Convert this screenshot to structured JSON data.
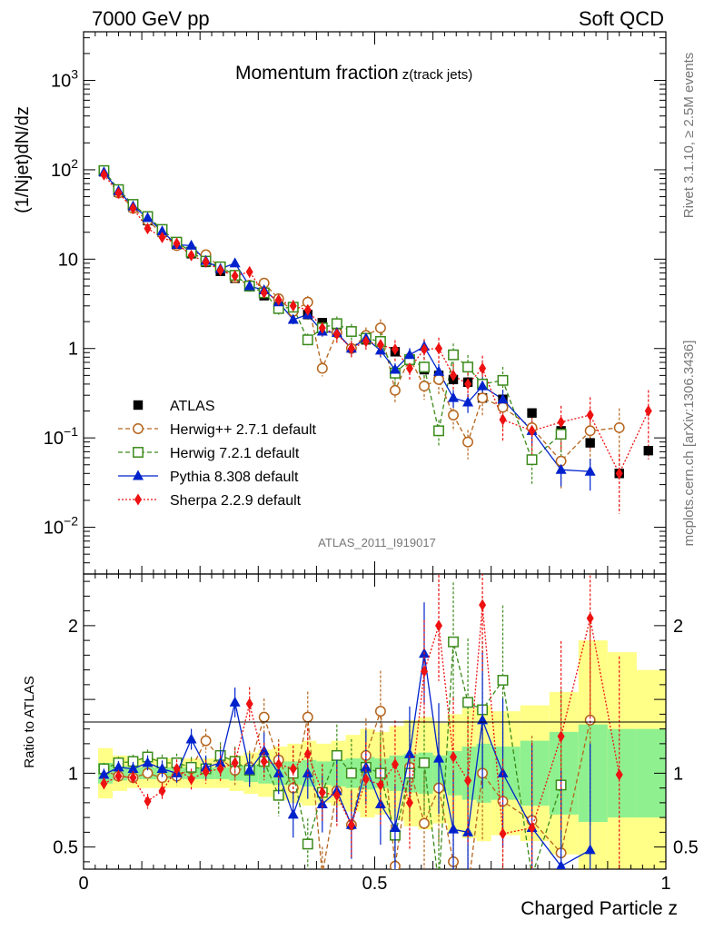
{
  "header": {
    "left": "7000 GeV pp",
    "right": "Soft QCD"
  },
  "side_text": {
    "top": "Rivet 3.1.10, ≥ 2.5M events",
    "bottom": "mcplots.cern.ch [arXiv:1306.3436]"
  },
  "watermark": "ATLAS_2011_I919017",
  "chart_data": [
    {
      "type": "scatter",
      "panel": "main",
      "title": "Momentum fraction",
      "title_suffix": "z(track jets)",
      "xlabel": "Charged Particle z",
      "ylabel": "(1/Njet)dN/dz",
      "yscale": "log",
      "xlim": [
        0,
        1
      ],
      "ylim": [
        0.003,
        3500
      ],
      "y_ticks": [
        {
          "v": 0.01,
          "base": "10",
          "exp": "−2"
        },
        {
          "v": 0.1,
          "base": "10",
          "exp": "−1"
        },
        {
          "v": 1,
          "base": "1",
          "exp": ""
        },
        {
          "v": 10,
          "base": "10",
          "exp": ""
        },
        {
          "v": 100,
          "base": "10",
          "exp": "2"
        },
        {
          "v": 1000,
          "base": "10",
          "exp": "3"
        }
      ],
      "x": [
        0.035,
        0.06,
        0.085,
        0.11,
        0.135,
        0.16,
        0.185,
        0.21,
        0.235,
        0.26,
        0.285,
        0.31,
        0.335,
        0.36,
        0.385,
        0.41,
        0.435,
        0.46,
        0.485,
        0.51,
        0.535,
        0.56,
        0.585,
        0.61,
        0.635,
        0.66,
        0.685,
        0.72,
        0.77,
        0.82,
        0.87,
        0.92,
        0.97
      ],
      "series": [
        {
          "name": "ATLAS",
          "color": "#000000",
          "marker": "square-filled",
          "values": [
            95,
            56,
            38,
            27,
            20,
            14.5,
            11.5,
            9.2,
            7.3,
            6.1,
            4.9,
            3.9,
            3.3,
            2.9,
            2.4,
            1.95,
            1.7,
            1.55,
            1.25,
            1.2,
            0.92,
            0.75,
            0.58,
            0.5,
            0.45,
            0.42,
            0.28,
            0.27,
            0.19,
            0.12,
            0.088,
            0.04,
            0.072
          ]
        },
        {
          "name": "Herwig++ 2.7.1 default",
          "color": "#b5651d",
          "marker": "circle-open",
          "dash": "5,3",
          "values": [
            97,
            55,
            37,
            27,
            19.5,
            14.2,
            11.8,
            11.2,
            8.0,
            6.2,
            5.1,
            5.4,
            3.6,
            2.6,
            3.3,
            0.6,
            1.5,
            1.0,
            1.4,
            1.7,
            0.34,
            0.78,
            0.38,
            0.45,
            0.18,
            0.09,
            0.28,
            0.22,
            0.13,
            0.055,
            0.12,
            0.13,
            null
          ]
        },
        {
          "name": "Herwig 7.2.1 default",
          "color": "#3a8a1a",
          "marker": "square-open",
          "dash": "5,3",
          "values": [
            98,
            60,
            41,
            30,
            21.5,
            15.5,
            12,
            9.5,
            8.2,
            6.6,
            5.0,
            4.2,
            2.8,
            2.9,
            1.25,
            1.7,
            1.9,
            1.55,
            1.3,
            1.2,
            0.53,
            0.75,
            0.62,
            0.12,
            0.85,
            0.62,
            0.4,
            0.44,
            0.057,
            0.11,
            null,
            null,
            null
          ]
        },
        {
          "name": "Pythia 8.308 default",
          "color": "#0022cc",
          "marker": "triangle-filled",
          "values": [
            94,
            58,
            39,
            29,
            20.5,
            14.5,
            14.2,
            9.6,
            7.8,
            9.0,
            5.0,
            4.5,
            3.3,
            2.1,
            2.4,
            1.55,
            1.5,
            1.0,
            1.3,
            0.95,
            0.58,
            0.85,
            1.05,
            0.55,
            0.28,
            0.25,
            0.38,
            0.27,
            0.12,
            0.044,
            0.042,
            null,
            null
          ]
        },
        {
          "name": "Sherpa 2.2.9 default",
          "color": "#ee1111",
          "marker": "diamond-filled",
          "dash": "2,2",
          "values": [
            88,
            55,
            37,
            22,
            17.5,
            15,
            11,
            9.3,
            7.5,
            6.5,
            7.2,
            4.2,
            3.5,
            3.0,
            2.7,
            1.7,
            1.45,
            1.0,
            1.2,
            1.1,
            0.98,
            0.6,
            0.98,
            1.0,
            0.5,
            0.4,
            0.6,
            0.16,
            0.12,
            0.15,
            0.18,
            0.04,
            0.2
          ]
        }
      ]
    },
    {
      "type": "line",
      "panel": "ratio",
      "ylabel": "Ratio to ATLAS",
      "xlabel": "Charged Particle z",
      "xlim": [
        0,
        1
      ],
      "ylim": [
        0.35,
        2.35
      ],
      "x_ticks": [
        {
          "v": 0,
          "label": "0"
        },
        {
          "v": 0.5,
          "label": "0.5"
        },
        {
          "v": 1,
          "label": "1"
        }
      ],
      "y_ticks": [
        {
          "v": 0.5,
          "label": "0.5"
        },
        {
          "v": 1,
          "label": "1"
        },
        {
          "v": 2,
          "label": "2"
        }
      ],
      "band_edges": [
        0.025,
        0.05,
        0.075,
        0.1,
        0.125,
        0.15,
        0.175,
        0.2,
        0.225,
        0.25,
        0.275,
        0.3,
        0.325,
        0.35,
        0.375,
        0.4,
        0.425,
        0.45,
        0.475,
        0.5,
        0.525,
        0.55,
        0.575,
        0.6,
        0.625,
        0.65,
        0.675,
        0.7,
        0.75,
        0.8,
        0.85,
        0.9,
        0.95,
        1.0
      ],
      "band_stat_sys": [
        0.17,
        0.12,
        0.1,
        0.1,
        0.1,
        0.1,
        0.1,
        0.1,
        0.1,
        0.12,
        0.14,
        0.16,
        0.18,
        0.2,
        0.22,
        0.2,
        0.22,
        0.26,
        0.3,
        0.28,
        0.32,
        0.36,
        0.38,
        0.34,
        0.4,
        0.44,
        0.46,
        0.42,
        0.46,
        0.55,
        0.9,
        0.82,
        0.7
      ],
      "band_stat": [
        0.07,
        0.05,
        0.04,
        0.04,
        0.04,
        0.04,
        0.04,
        0.04,
        0.04,
        0.05,
        0.06,
        0.07,
        0.08,
        0.08,
        0.09,
        0.08,
        0.09,
        0.1,
        0.11,
        0.1,
        0.12,
        0.13,
        0.14,
        0.12,
        0.15,
        0.18,
        0.2,
        0.18,
        0.22,
        0.28,
        0.33,
        0.3,
        0.3
      ],
      "ratio_series": [
        {
          "name": "Herwig++ 2.7.1 default",
          "values": [
            1.02,
            0.98,
            0.97,
            1.0,
            0.97,
            0.98,
            1.03,
            1.22,
            1.1,
            1.02,
            1.04,
            1.38,
            1.09,
            0.9,
            1.38,
            0.31,
            0.88,
            0.65,
            1.12,
            1.42,
            0.37,
            1.04,
            0.66,
            0.9,
            0.4,
            0.21,
            1.0,
            0.81,
            0.68,
            0.46,
            1.36,
            null,
            null
          ]
        },
        {
          "name": "Herwig 7.2.1 default",
          "values": [
            1.03,
            1.07,
            1.08,
            1.11,
            1.07,
            1.07,
            1.04,
            1.03,
            1.12,
            1.08,
            1.02,
            1.08,
            0.85,
            1.0,
            0.52,
            0.87,
            1.12,
            1.0,
            1.04,
            1.0,
            0.58,
            1.0,
            1.07,
            0.24,
            1.89,
            1.48,
            1.43,
            1.63,
            0.3,
            0.92,
            null,
            null,
            null
          ]
        },
        {
          "name": "Pythia 8.308 default",
          "values": [
            0.99,
            1.04,
            1.03,
            1.07,
            1.03,
            1.0,
            1.23,
            1.04,
            1.07,
            1.48,
            1.02,
            1.15,
            1.0,
            0.72,
            1.0,
            0.79,
            0.88,
            0.65,
            1.04,
            0.79,
            0.63,
            1.13,
            1.81,
            1.1,
            0.62,
            0.6,
            1.36,
            1.0,
            0.63,
            0.37,
            0.48,
            null,
            null
          ]
        },
        {
          "name": "Sherpa 2.2.9 default",
          "values": [
            0.93,
            0.98,
            0.97,
            0.81,
            0.88,
            1.03,
            0.96,
            1.01,
            1.03,
            1.07,
            1.47,
            1.08,
            1.06,
            1.03,
            1.13,
            0.87,
            0.85,
            0.65,
            0.96,
            0.92,
            1.06,
            0.8,
            1.69,
            2.0,
            1.11,
            0.95,
            2.14,
            0.59,
            0.63,
            1.25,
            2.05,
            0.99,
            null
          ]
        }
      ]
    }
  ]
}
